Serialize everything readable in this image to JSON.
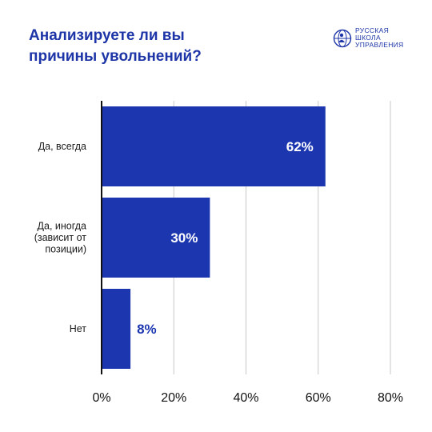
{
  "header": {
    "title_line1": "Анализируете ли вы",
    "title_line2": "причины увольнений?"
  },
  "logo": {
    "icon": "globe-person-icon",
    "line1": "РУССКАЯ",
    "line2": "ШКОЛА",
    "line3": "УПРАВЛЕНИЯ"
  },
  "colors": {
    "bar": "#1c36b0",
    "title": "#1d35a7",
    "label_inside": "#ffffff",
    "label_outside": "#1c36b0",
    "grid": "#c8c8c8",
    "axis": "#111111"
  },
  "chart_data": {
    "type": "bar",
    "orientation": "horizontal",
    "categories": [
      [
        "Да, всегда"
      ],
      [
        "Да, иногда",
        "(зависит от",
        "позиции)"
      ],
      [
        "Нет"
      ]
    ],
    "values": [
      62,
      30,
      8
    ],
    "value_labels": [
      "62%",
      "30%",
      "8%"
    ],
    "xlim": [
      0,
      80
    ],
    "x_ticks": [
      0,
      20,
      40,
      60,
      80
    ],
    "x_tick_labels": [
      "0%",
      "20%",
      "40%",
      "60%",
      "80%"
    ],
    "grid": true
  }
}
